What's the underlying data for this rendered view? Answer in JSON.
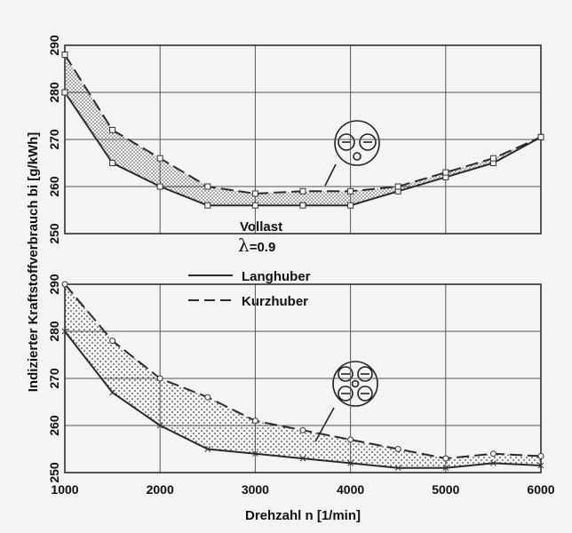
{
  "chart_data": [
    {
      "type": "line",
      "x": [
        1000,
        1500,
        2000,
        2500,
        3000,
        3500,
        4000,
        4500,
        5000,
        5500,
        6000
      ],
      "xlim": [
        1000,
        6000
      ],
      "ylim": [
        250,
        290
      ],
      "yticks": [
        250,
        260,
        270,
        280,
        290
      ],
      "series": [
        {
          "name": "Langhuber",
          "values": [
            280,
            265,
            260,
            256,
            256,
            256,
            256,
            259,
            262,
            265,
            270.5
          ]
        },
        {
          "name": "Kurzhuber",
          "values": [
            288,
            272,
            266,
            260,
            258.5,
            259,
            259,
            260,
            263,
            266,
            270.5
          ]
        }
      ],
      "fill_between": true,
      "grid": true
    },
    {
      "type": "line",
      "x": [
        1000,
        1500,
        2000,
        2500,
        3000,
        3500,
        4000,
        4500,
        5000,
        5500,
        6000
      ],
      "xlim": [
        1000,
        6000
      ],
      "ylim": [
        250,
        290
      ],
      "yticks": [
        250,
        260,
        270,
        280,
        290
      ],
      "series": [
        {
          "name": "Langhuber",
          "values": [
            280,
            267,
            260,
            255,
            254,
            253,
            252,
            251,
            251,
            252,
            251.5
          ]
        },
        {
          "name": "Kurzhuber",
          "values": [
            290,
            278,
            270,
            266,
            261,
            259,
            257,
            255,
            253,
            254,
            253.5
          ]
        }
      ],
      "fill_between": true,
      "grid": true
    }
  ],
  "labels": {
    "ylabel": "Indizierter Kraftstoffverbrauch bi [g/kWh]",
    "xlabel": "Drehzahl n [1/min]",
    "condition": "Vollast",
    "lambda_symbol": "λ",
    "lambda_value": "=0.9"
  },
  "legend": {
    "items": [
      {
        "label": "Langhuber",
        "style": "solid"
      },
      {
        "label": "Kurzhuber",
        "style": "dashed"
      }
    ]
  },
  "xticks": [
    "1000",
    "2000",
    "3000",
    "4000",
    "5000",
    "6000"
  ],
  "colors": {
    "line": "#2a2a2a",
    "grid": "#555555",
    "fill_dots": "#444444",
    "background": "#f4f4f2"
  }
}
